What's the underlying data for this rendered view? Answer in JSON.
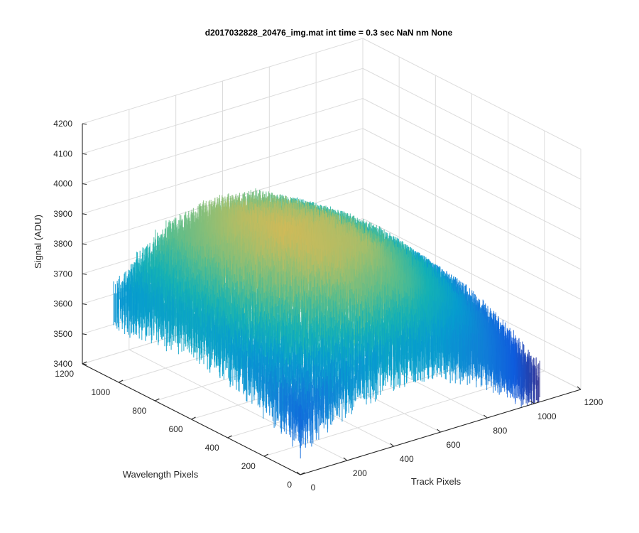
{
  "chart_data": {
    "type": "surface",
    "title": "d2017032828_20476_img.mat int time = 0.3 sec  NaN nm None",
    "xlabel": "Track Pixels",
    "ylabel": "Wavelength Pixels",
    "zlabel": "Signal (ADU)",
    "xlim": [
      0,
      1200
    ],
    "ylim": [
      0,
      1200
    ],
    "zlim": [
      3400,
      4200
    ],
    "xticks": [
      "0",
      "200",
      "400",
      "600",
      "800",
      "1000",
      "1200"
    ],
    "yticks": [
      "0",
      "200",
      "400",
      "600",
      "800",
      "1000",
      "1200"
    ],
    "zticks": [
      "3400",
      "3500",
      "3600",
      "3700",
      "3800",
      "3900",
      "4000",
      "4100",
      "4200"
    ],
    "grid": true,
    "colormap": "parula",
    "data_extent": {
      "track_pixels": [
        0,
        1024
      ],
      "wavelength_pixels": [
        0,
        1024
      ]
    },
    "surface_profile": {
      "description_values_approx": true,
      "peak_signal": 3900,
      "track_samples": [
        0,
        200,
        400,
        600,
        800,
        1024
      ],
      "wavelength_samples": [
        0,
        200,
        400,
        600,
        800,
        1024
      ],
      "signal_grid": [
        [
          3560,
          3650,
          3690,
          3670,
          3600,
          3460
        ],
        [
          3630,
          3760,
          3830,
          3800,
          3700,
          3540
        ],
        [
          3680,
          3820,
          3880,
          3860,
          3760,
          3590
        ],
        [
          3700,
          3840,
          3895,
          3870,
          3780,
          3610
        ],
        [
          3690,
          3830,
          3880,
          3855,
          3770,
          3600
        ],
        [
          3660,
          3800,
          3840,
          3820,
          3740,
          3570
        ]
      ],
      "noise_amplitude": 120
    }
  }
}
